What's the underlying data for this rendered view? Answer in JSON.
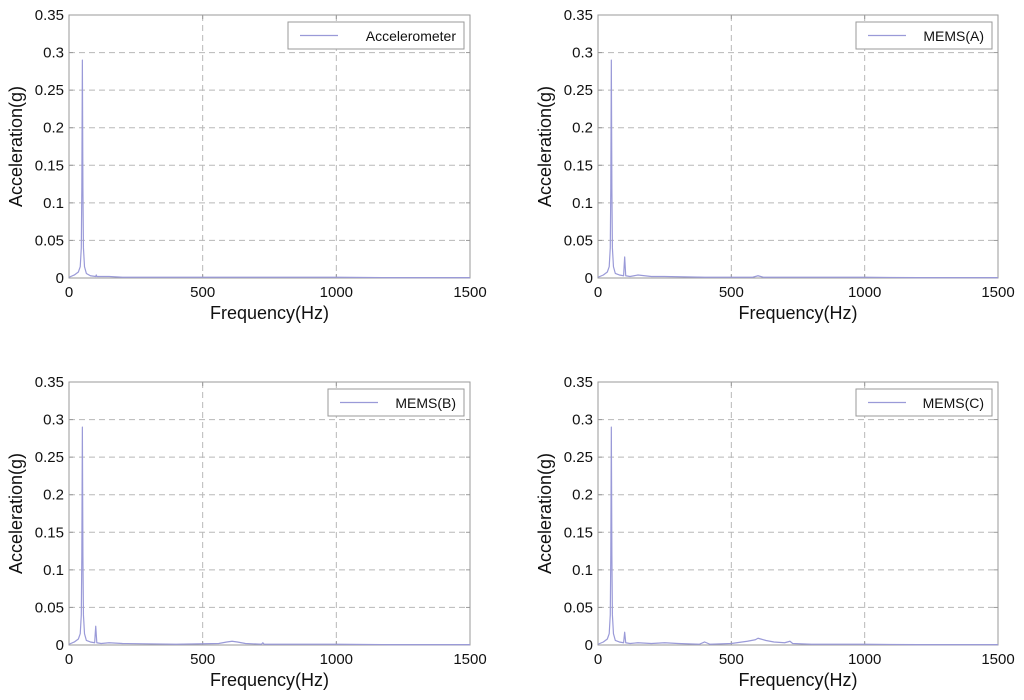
{
  "colors": {
    "series": "#9a9ad8"
  },
  "chart_data": [
    {
      "type": "line",
      "xlabel": "Frequency(Hz)",
      "ylabel": "Acceleration(g)",
      "xlim": [
        0,
        1500
      ],
      "ylim": [
        0,
        0.35
      ],
      "x_ticks": [
        "0",
        "500",
        "1000",
        "1500"
      ],
      "y_ticks": [
        "0",
        "0.05",
        "0.1",
        "0.15",
        "0.2",
        "0.25",
        "0.3",
        "0.35"
      ],
      "grid": true,
      "legend": "top-right",
      "series": [
        {
          "name": "Accelerometer",
          "x": [
            0,
            20,
            35,
            42,
            46,
            48,
            50,
            52,
            54,
            58,
            65,
            80,
            100,
            102,
            104,
            150,
            200,
            400,
            600,
            800,
            1000,
            1200,
            1500
          ],
          "y": [
            0.001,
            0.004,
            0.008,
            0.015,
            0.04,
            0.12,
            0.29,
            0.12,
            0.04,
            0.015,
            0.006,
            0.003,
            0.002,
            0.004,
            0.002,
            0.002,
            0.001,
            0.001,
            0.001,
            0.001,
            0.001,
            0.0005,
            0.0005
          ]
        }
      ]
    },
    {
      "type": "line",
      "xlabel": "Frequency(Hz)",
      "ylabel": "Acceleration(g)",
      "xlim": [
        0,
        1500
      ],
      "ylim": [
        0,
        0.35
      ],
      "x_ticks": [
        "0",
        "500",
        "1000",
        "1500"
      ],
      "y_ticks": [
        "0",
        "0.05",
        "0.1",
        "0.15",
        "0.2",
        "0.25",
        "0.3",
        "0.35"
      ],
      "grid": true,
      "legend": "top-right",
      "series": [
        {
          "name": "MEMS(A)",
          "x": [
            0,
            20,
            35,
            42,
            46,
            48,
            50,
            52,
            54,
            58,
            65,
            80,
            96,
            100,
            104,
            120,
            150,
            200,
            250,
            400,
            580,
            600,
            620,
            800,
            1000,
            1200,
            1500
          ],
          "y": [
            0.001,
            0.004,
            0.008,
            0.015,
            0.04,
            0.12,
            0.29,
            0.12,
            0.04,
            0.015,
            0.006,
            0.004,
            0.003,
            0.028,
            0.003,
            0.002,
            0.004,
            0.002,
            0.002,
            0.001,
            0.001,
            0.003,
            0.001,
            0.001,
            0.001,
            0.0005,
            0.0005
          ]
        }
      ]
    },
    {
      "type": "line",
      "xlabel": "Frequency(Hz)",
      "ylabel": "Acceleration(g)",
      "xlim": [
        0,
        1500
      ],
      "ylim": [
        0,
        0.35
      ],
      "x_ticks": [
        "0",
        "500",
        "1000",
        "1500"
      ],
      "y_ticks": [
        "0",
        "0.05",
        "0.1",
        "0.15",
        "0.2",
        "0.25",
        "0.3",
        "0.35"
      ],
      "grid": true,
      "legend": "top-right",
      "series": [
        {
          "name": "MEMS(B)",
          "x": [
            0,
            20,
            35,
            42,
            46,
            48,
            50,
            52,
            54,
            58,
            65,
            80,
            96,
            100,
            104,
            120,
            150,
            200,
            400,
            560,
            590,
            610,
            630,
            660,
            720,
            725,
            730,
            800,
            1000,
            1200,
            1500
          ],
          "y": [
            0.001,
            0.004,
            0.008,
            0.015,
            0.04,
            0.12,
            0.29,
            0.12,
            0.04,
            0.015,
            0.006,
            0.004,
            0.003,
            0.025,
            0.003,
            0.002,
            0.003,
            0.002,
            0.001,
            0.002,
            0.004,
            0.005,
            0.004,
            0.002,
            0.001,
            0.003,
            0.001,
            0.001,
            0.001,
            0.0005,
            0.0005
          ]
        }
      ]
    },
    {
      "type": "line",
      "xlabel": "Frequency(Hz)",
      "ylabel": "Acceleration(g)",
      "xlim": [
        0,
        1500
      ],
      "ylim": [
        0,
        0.35
      ],
      "x_ticks": [
        "0",
        "500",
        "1000",
        "1500"
      ],
      "y_ticks": [
        "0",
        "0.05",
        "0.1",
        "0.15",
        "0.2",
        "0.25",
        "0.3",
        "0.35"
      ],
      "grid": true,
      "legend": "top-right",
      "series": [
        {
          "name": "MEMS(C)",
          "x": [
            0,
            20,
            35,
            42,
            46,
            48,
            50,
            52,
            54,
            58,
            65,
            80,
            96,
            100,
            104,
            120,
            150,
            200,
            250,
            300,
            380,
            400,
            420,
            500,
            560,
            590,
            600,
            610,
            630,
            660,
            700,
            720,
            730,
            800,
            1000,
            1200,
            1500
          ],
          "y": [
            0.001,
            0.004,
            0.008,
            0.015,
            0.04,
            0.12,
            0.29,
            0.12,
            0.04,
            0.015,
            0.006,
            0.004,
            0.003,
            0.017,
            0.003,
            0.002,
            0.003,
            0.002,
            0.003,
            0.002,
            0.001,
            0.004,
            0.001,
            0.002,
            0.005,
            0.007,
            0.009,
            0.008,
            0.006,
            0.004,
            0.003,
            0.005,
            0.002,
            0.001,
            0.001,
            0.0005,
            0.0005
          ]
        }
      ]
    }
  ]
}
